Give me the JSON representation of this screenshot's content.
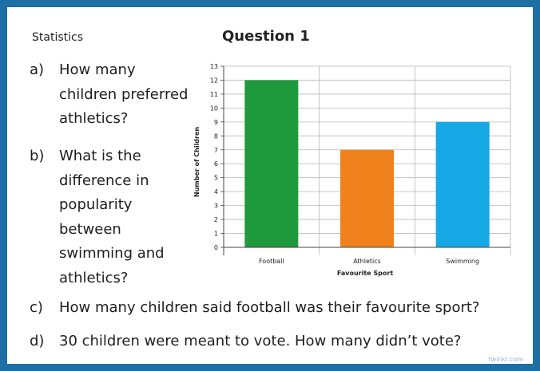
{
  "header": {
    "subject": "Statistics",
    "title": "Question 1"
  },
  "questions": {
    "a": {
      "letter": "a)",
      "lines": [
        "How many",
        "children preferred",
        "athletics?"
      ]
    },
    "b": {
      "letter": "b)",
      "lines": [
        "What is the",
        "difference in",
        "popularity",
        "between",
        "swimming and",
        "athletics?"
      ]
    },
    "c": {
      "letter": "c)",
      "text": "How many children said football was their favourite sport?"
    },
    "d": {
      "letter": "d)",
      "text": "30 children were meant to vote. How many didn’t vote?"
    }
  },
  "brand": "twinkl.com",
  "chart_data": {
    "type": "bar",
    "categories": [
      "Football",
      "Athletics",
      "Swimming"
    ],
    "values": [
      12,
      7,
      9
    ],
    "colors": [
      "#1e9a3c",
      "#f0821e",
      "#16a8e4"
    ],
    "xlabel": "Favourite Sport",
    "ylabel": "Number of Children",
    "ylim": [
      0,
      13
    ],
    "yticks": [
      "0",
      "1",
      "2",
      "3",
      "4",
      "5",
      "6",
      "7",
      "8",
      "9",
      "10",
      "11",
      "12",
      "13"
    ],
    "grid": true
  }
}
